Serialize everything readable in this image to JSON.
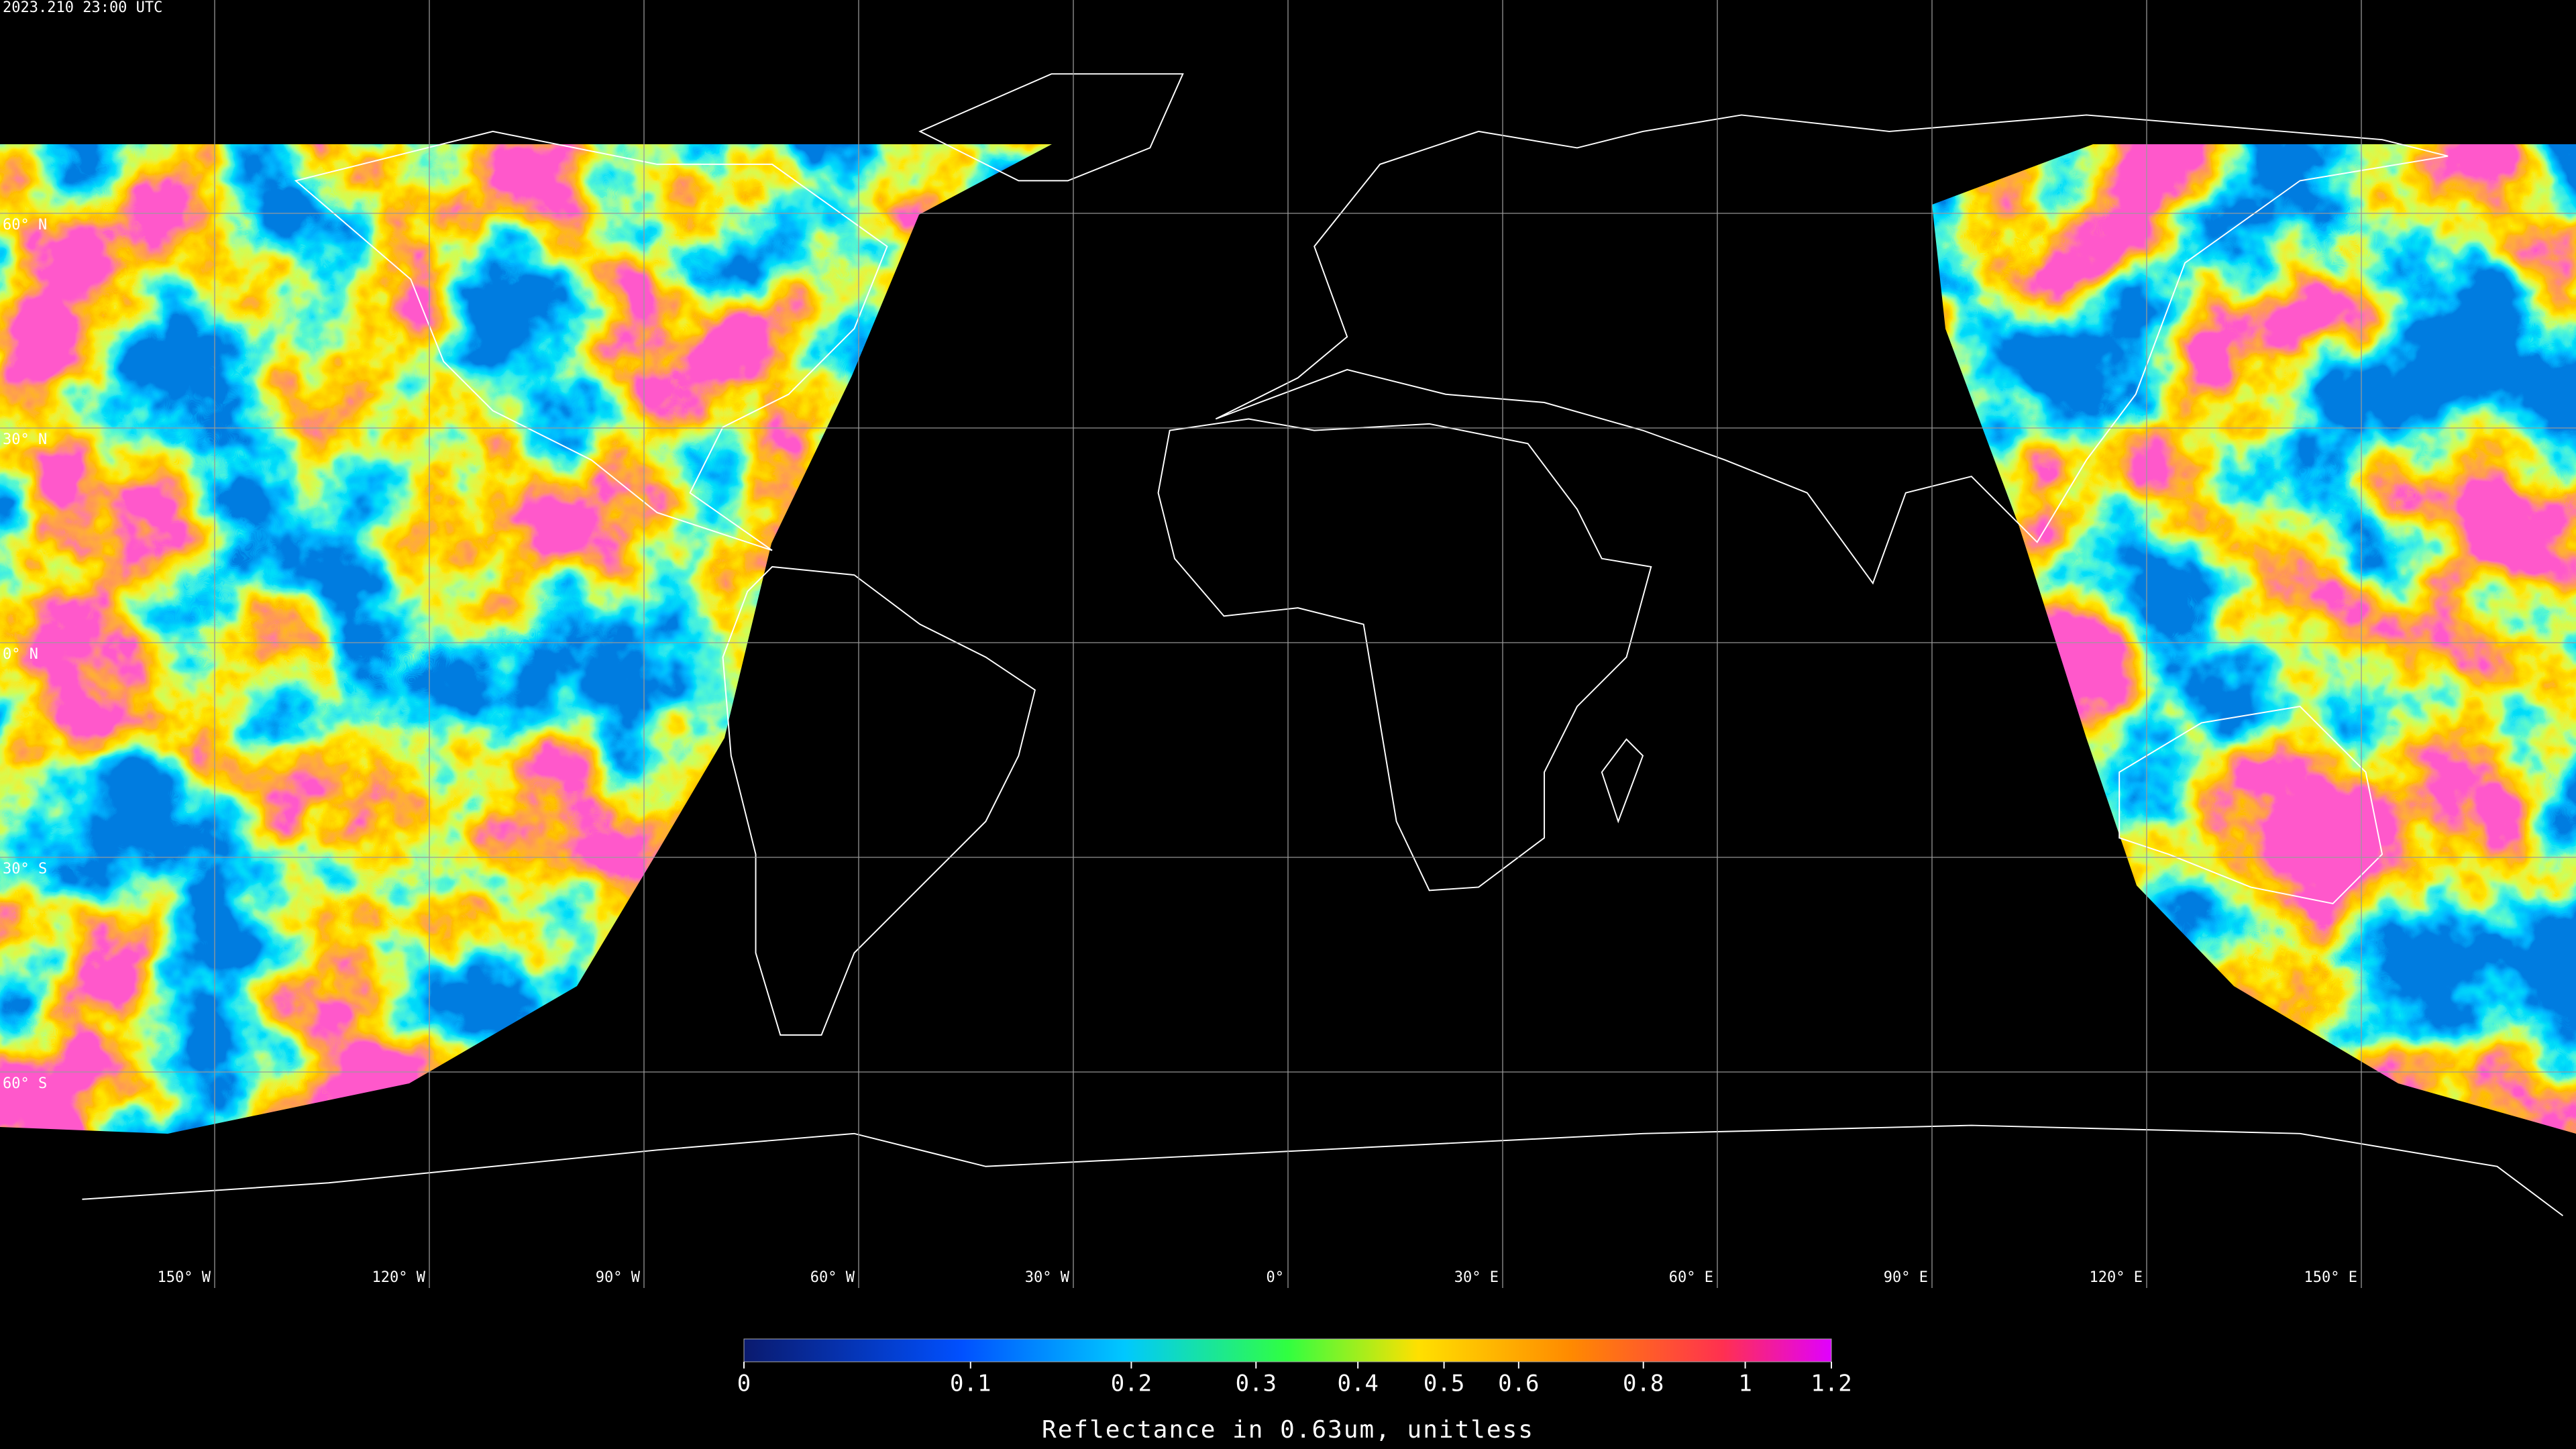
{
  "map": {
    "title": "2023.210 23:00 UTC",
    "lat_grid": [
      {
        "value": 60,
        "label": "60° N"
      },
      {
        "value": 30,
        "label": "30° N"
      },
      {
        "value": 0,
        "label": "0° N"
      },
      {
        "value": -30,
        "label": "30° S"
      },
      {
        "value": -60,
        "label": "60° S"
      }
    ],
    "lon_grid": [
      {
        "value": -150,
        "label": "150° W"
      },
      {
        "value": -120,
        "label": "120° W"
      },
      {
        "value": -90,
        "label": "90° W"
      },
      {
        "value": -60,
        "label": "60° W"
      },
      {
        "value": -30,
        "label": "30° W"
      },
      {
        "value": 0,
        "label": "0°"
      },
      {
        "value": 30,
        "label": "30° E"
      },
      {
        "value": 60,
        "label": "60° E"
      },
      {
        "value": 90,
        "label": "90° E"
      },
      {
        "value": 120,
        "label": "120° E"
      },
      {
        "value": 150,
        "label": "150° E"
      }
    ]
  },
  "colorbar": {
    "label": "Reflectance in 0.63um, unitless",
    "lim": [
      0,
      1.2
    ],
    "scale": "log",
    "log_offset": 0.2,
    "ticks": [
      0,
      0.1,
      0.2,
      0.3,
      0.4,
      0.5,
      0.6,
      0.8,
      1,
      1.2
    ]
  }
}
